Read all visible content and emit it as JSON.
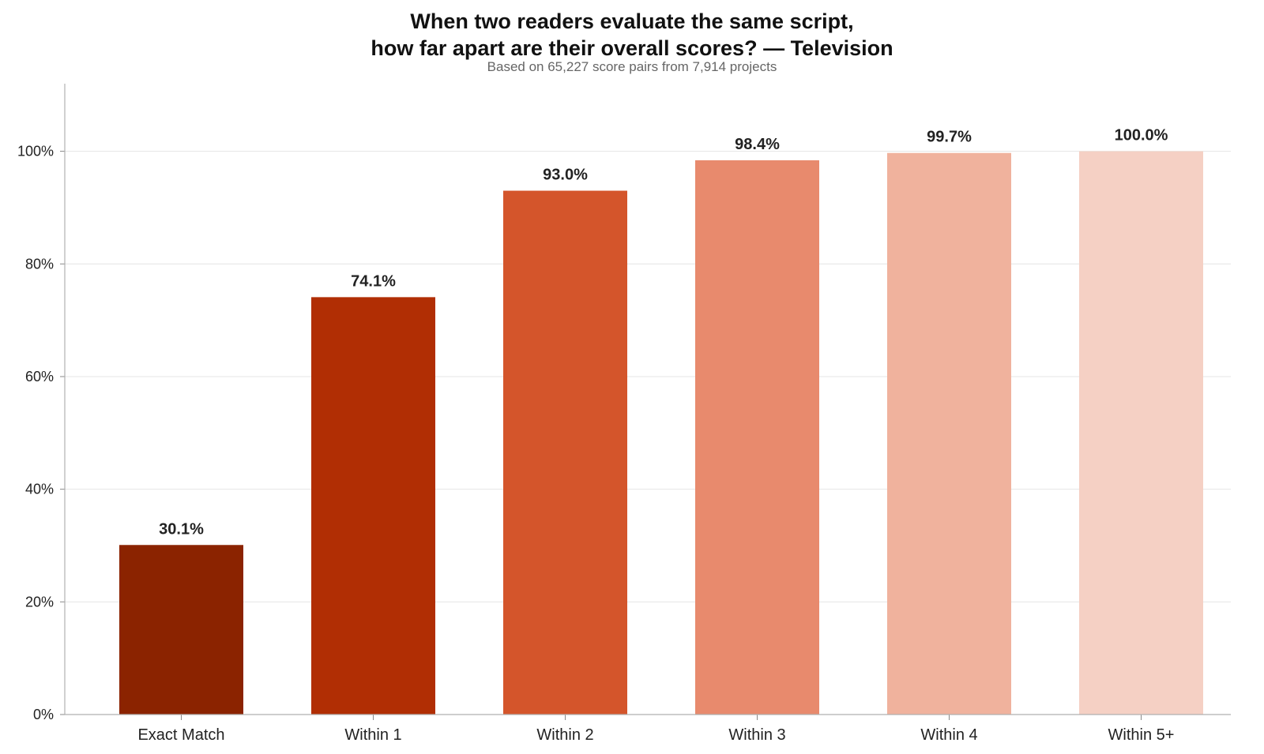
{
  "chart_data": {
    "type": "bar",
    "title_lines": [
      "When two readers evaluate the same script,",
      "how far apart are their overall scores? — Television"
    ],
    "subtitle": "Based on 65,227 score pairs from 7,914 projects",
    "xlabel": "",
    "ylabel": "",
    "categories": [
      "Exact Match",
      "Within 1",
      "Within 2",
      "Within 3",
      "Within 4",
      "Within 5+"
    ],
    "values": [
      30.1,
      74.1,
      93.0,
      98.4,
      99.7,
      100.0
    ],
    "value_labels": [
      "30.1%",
      "74.1%",
      "93.0%",
      "98.4%",
      "99.7%",
      "100.0%"
    ],
    "colors": [
      "#8b2300",
      "#b12e04",
      "#d4552b",
      "#e88a6d",
      "#f0b29d",
      "#f5d0c4"
    ],
    "ylim": [
      0,
      112
    ],
    "yticks": [
      0,
      20,
      40,
      60,
      80,
      100
    ],
    "ytick_labels": [
      "0%",
      "20%",
      "40%",
      "60%",
      "80%",
      "100%"
    ],
    "grid": true,
    "legend": "none"
  }
}
